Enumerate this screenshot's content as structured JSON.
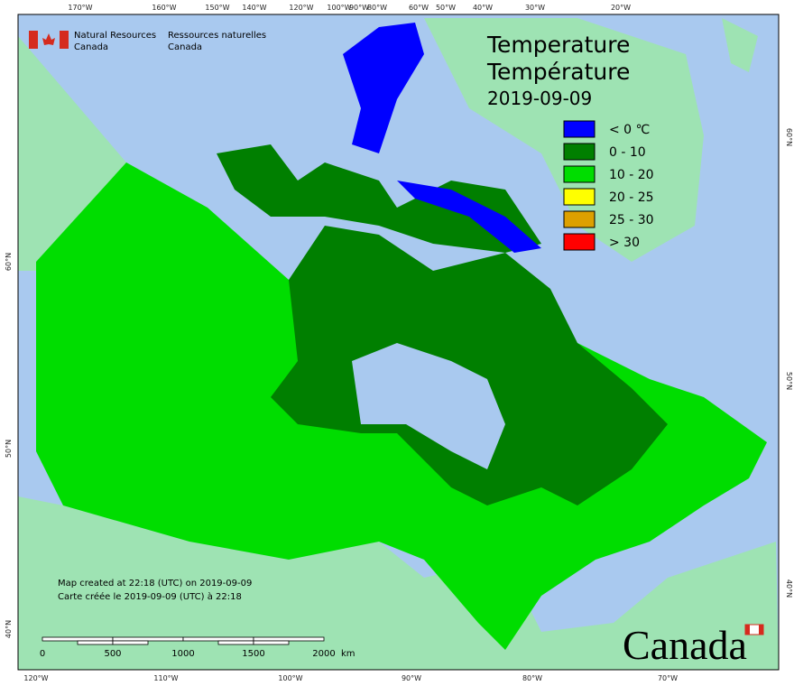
{
  "header": {
    "org_en_1": "Natural Resources",
    "org_en_2": "Canada",
    "org_fr_1": "Ressources naturelles",
    "org_fr_2": "Canada"
  },
  "title": {
    "line_en": "Temperature",
    "line_fr": "Température",
    "date": "2019-09-09"
  },
  "legend": [
    {
      "label": "< 0 ℃",
      "color": "#0000ff"
    },
    {
      "label": "0 - 10",
      "color": "#007f00"
    },
    {
      "label": "10 - 20",
      "color": "#00dd00"
    },
    {
      "label": "20 - 25",
      "color": "#ffff00"
    },
    {
      "label": "25 - 30",
      "color": "#dda000"
    },
    {
      "label": "> 30",
      "color": "#ff0000"
    }
  ],
  "graticule": {
    "top": [
      "170°W",
      "160°W",
      "150°W",
      "140°W",
      "120°W",
      "100°W",
      "90°W",
      "80°W",
      "60°W",
      "50°W",
      "40°W",
      "30°W",
      "20°W"
    ],
    "bottom": [
      "120°W",
      "110°W",
      "100°W",
      "90°W",
      "80°W",
      "70°W"
    ],
    "left": [
      "60°N",
      "50°N",
      "40°N"
    ],
    "right": [
      "60°N",
      "50°N",
      "40°N"
    ]
  },
  "notes": [
    "Map created at 22:18 (UTC) on 2019-09-09",
    "Carte créée le 2019-09-09 (UTC) à 22:18"
  ],
  "scale": {
    "ticks": [
      "0",
      "500",
      "1000",
      "1500",
      "2000"
    ],
    "unit": "km"
  },
  "wordmark": "Canada"
}
